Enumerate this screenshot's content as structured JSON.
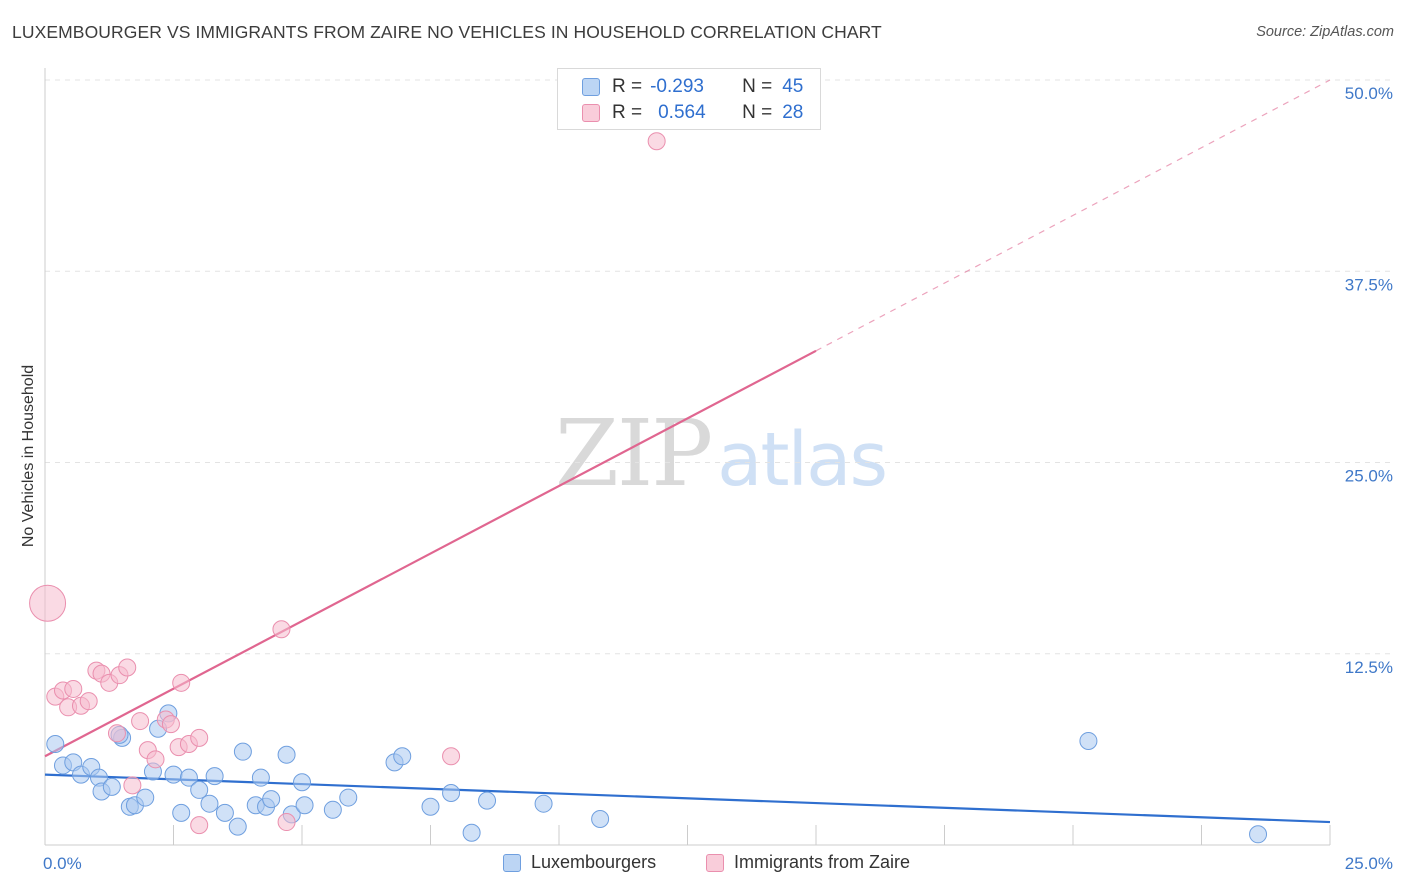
{
  "title": "LUXEMBOURGER VS IMMIGRANTS FROM ZAIRE NO VEHICLES IN HOUSEHOLD CORRELATION CHART",
  "source": "Source: ZipAtlas.com",
  "watermark": {
    "part1": "ZIP",
    "part2": "atlas"
  },
  "colors": {
    "blue": "#2f6fcf",
    "blue_fill": "#a9c8f0",
    "pink": "#e06690",
    "pink_fill": "#f6bccd",
    "grid": "#e3e3e3",
    "axis_text": "#3f78c8"
  },
  "legend_top": {
    "rows": [
      {
        "r_label": "R =",
        "r_value": "-0.293",
        "n_label": "N =",
        "n_value": "45"
      },
      {
        "r_label": "R =",
        "r_value": "0.564",
        "n_label": "N =",
        "n_value": "28"
      }
    ]
  },
  "chart_data": {
    "type": "scatter",
    "title": "LUXEMBOURGER VS IMMIGRANTS FROM ZAIRE NO VEHICLES IN HOUSEHOLD CORRELATION CHART",
    "xlabel": "",
    "ylabel": "No Vehicles in Household",
    "xlim": [
      0,
      25
    ],
    "ylim": [
      0,
      50
    ],
    "x_tick_labels": [
      "0.0%",
      "25.0%"
    ],
    "y_ticks": [
      12.5,
      25.0,
      37.5,
      50.0
    ],
    "y_tick_labels": [
      "12.5%",
      "25.0%",
      "37.5%",
      "50.0%"
    ],
    "grid": true,
    "legend_placement": "bottom",
    "series": [
      {
        "name": "Luxembourgers",
        "color": "#2f6fcf",
        "r": -0.293,
        "n": 45,
        "trend": {
          "x": [
            0,
            25
          ],
          "y": [
            4.6,
            1.5
          ],
          "dashed_from": null
        },
        "points": [
          [
            0.2,
            6.6
          ],
          [
            0.35,
            5.2
          ],
          [
            0.55,
            5.4
          ],
          [
            0.7,
            4.6
          ],
          [
            0.9,
            5.1
          ],
          [
            1.05,
            4.4
          ],
          [
            1.1,
            3.5
          ],
          [
            1.3,
            3.8
          ],
          [
            1.5,
            7.0
          ],
          [
            1.65,
            2.5
          ],
          [
            1.75,
            2.6
          ],
          [
            1.95,
            3.1
          ],
          [
            2.1,
            4.8
          ],
          [
            2.2,
            7.6
          ],
          [
            2.4,
            8.6
          ],
          [
            2.5,
            4.6
          ],
          [
            2.65,
            2.1
          ],
          [
            2.8,
            4.4
          ],
          [
            3.2,
            2.7
          ],
          [
            3.3,
            4.5
          ],
          [
            3.5,
            2.1
          ],
          [
            3.75,
            1.2
          ],
          [
            3.85,
            6.1
          ],
          [
            4.1,
            2.6
          ],
          [
            4.2,
            4.4
          ],
          [
            4.3,
            2.5
          ],
          [
            4.4,
            3.0
          ],
          [
            4.7,
            5.9
          ],
          [
            4.8,
            2.0
          ],
          [
            5.0,
            4.1
          ],
          [
            5.05,
            2.6
          ],
          [
            5.6,
            2.3
          ],
          [
            5.9,
            3.1
          ],
          [
            6.8,
            5.4
          ],
          [
            6.95,
            5.8
          ],
          [
            7.5,
            2.5
          ],
          [
            7.9,
            3.4
          ],
          [
            8.3,
            0.8
          ],
          [
            8.6,
            2.9
          ],
          [
            9.7,
            2.7
          ],
          [
            10.8,
            1.7
          ],
          [
            20.3,
            6.8
          ],
          [
            23.6,
            0.7
          ],
          [
            1.45,
            7.2
          ],
          [
            3.0,
            3.6
          ]
        ]
      },
      {
        "name": "Immigrants from Zaire",
        "color": "#e06690",
        "r": 0.564,
        "n": 28,
        "trend": {
          "x": [
            0,
            15
          ],
          "y": [
            5.8,
            32.3
          ],
          "dashed_to": [
            25,
            50.0
          ]
        },
        "points": [
          [
            0.05,
            15.8
          ],
          [
            0.2,
            9.7
          ],
          [
            0.35,
            10.1
          ],
          [
            0.45,
            9.0
          ],
          [
            0.55,
            10.2
          ],
          [
            0.7,
            9.1
          ],
          [
            0.85,
            9.4
          ],
          [
            1.0,
            11.4
          ],
          [
            1.1,
            11.2
          ],
          [
            1.25,
            10.6
          ],
          [
            1.4,
            7.3
          ],
          [
            1.45,
            11.1
          ],
          [
            1.6,
            11.6
          ],
          [
            1.7,
            3.9
          ],
          [
            1.85,
            8.1
          ],
          [
            2.0,
            6.2
          ],
          [
            2.15,
            5.6
          ],
          [
            2.35,
            8.2
          ],
          [
            2.45,
            7.9
          ],
          [
            2.6,
            6.4
          ],
          [
            2.65,
            10.6
          ],
          [
            2.8,
            6.6
          ],
          [
            3.0,
            7.0
          ],
          [
            3.0,
            1.3
          ],
          [
            4.6,
            14.1
          ],
          [
            4.7,
            1.5
          ],
          [
            7.9,
            5.8
          ],
          [
            11.9,
            46.0
          ]
        ]
      }
    ]
  },
  "bottom_legend": [
    "Luxembourgers",
    "Immigrants from Zaire"
  ]
}
